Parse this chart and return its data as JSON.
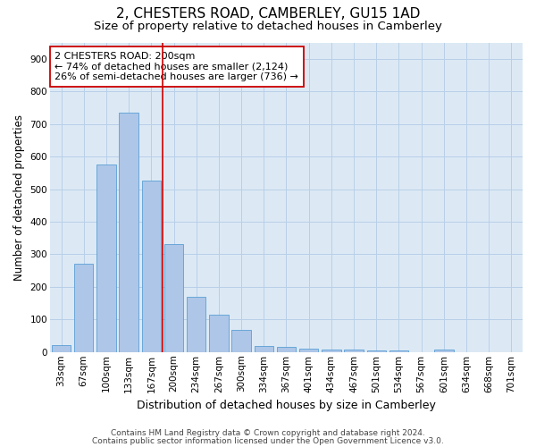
{
  "title": "2, CHESTERS ROAD, CAMBERLEY, GU15 1AD",
  "subtitle": "Size of property relative to detached houses in Camberley",
  "xlabel": "Distribution of detached houses by size in Camberley",
  "ylabel": "Number of detached properties",
  "categories": [
    "33sqm",
    "67sqm",
    "100sqm",
    "133sqm",
    "167sqm",
    "200sqm",
    "234sqm",
    "267sqm",
    "300sqm",
    "334sqm",
    "367sqm",
    "401sqm",
    "434sqm",
    "467sqm",
    "501sqm",
    "534sqm",
    "567sqm",
    "601sqm",
    "634sqm",
    "668sqm",
    "701sqm"
  ],
  "values": [
    20,
    270,
    575,
    735,
    525,
    330,
    170,
    115,
    67,
    18,
    15,
    10,
    7,
    7,
    5,
    5,
    0,
    7,
    0,
    0,
    0
  ],
  "bar_color": "#aec6e8",
  "bar_edge_color": "#5a9fd4",
  "vline_index": 5,
  "vline_color": "#cc0000",
  "annotation_line1": "2 CHESTERS ROAD: 200sqm",
  "annotation_line2": "← 74% of detached houses are smaller (2,124)",
  "annotation_line3": "26% of semi-detached houses are larger (736) →",
  "annotation_box_color": "#ffffff",
  "annotation_box_edge_color": "#cc0000",
  "ylim": [
    0,
    950
  ],
  "yticks": [
    0,
    100,
    200,
    300,
    400,
    500,
    600,
    700,
    800,
    900
  ],
  "footer1": "Contains HM Land Registry data © Crown copyright and database right 2024.",
  "footer2": "Contains public sector information licensed under the Open Government Licence v3.0.",
  "bg_color": "#ffffff",
  "plot_bg_color": "#dce9f5",
  "grid_color": "#b8cfe8",
  "title_fontsize": 11,
  "subtitle_fontsize": 9.5,
  "xlabel_fontsize": 9,
  "ylabel_fontsize": 8.5,
  "tick_fontsize": 7.5,
  "annotation_fontsize": 8,
  "footer_fontsize": 6.5
}
